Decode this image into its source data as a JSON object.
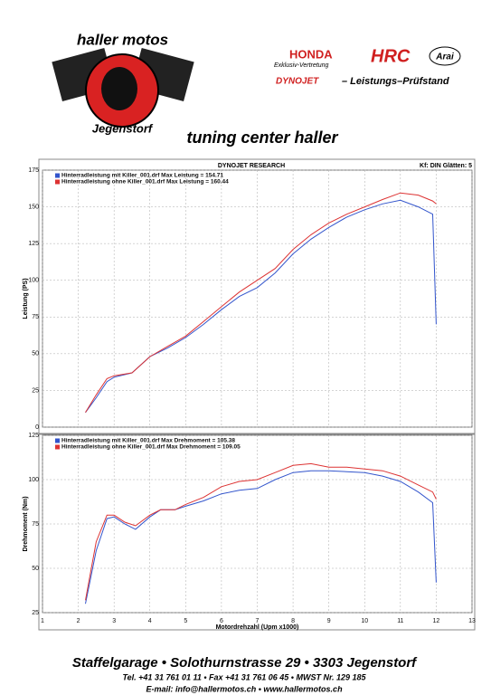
{
  "header": {
    "brand_line1": "haller motos",
    "brand_line2": "Jegenstorf",
    "honda": "HONDA",
    "honda_sub": "Exklusiv-Vertretung",
    "hrc": "HRC",
    "arai": "Arai",
    "dynojet": "DYNOJET",
    "dyno_text": "– Leistungs–Prüfstand",
    "tagline": "tuning center haller"
  },
  "dyno": {
    "title": "DYNOJET RESEARCH",
    "settings": "Kf: DIN  Glätten: 5"
  },
  "chart_data": [
    {
      "type": "line",
      "ylabel": "Leistung (PS)",
      "ylim": [
        0,
        175
      ],
      "yticks": [
        0,
        25,
        50,
        75,
        100,
        125,
        150,
        175
      ],
      "xlim": [
        1,
        13
      ],
      "xticks": [
        1,
        2,
        3,
        4,
        5,
        6,
        7,
        8,
        9,
        10,
        11,
        12,
        13
      ],
      "show_xtick_labels": false,
      "grid": true,
      "x": [
        2.2,
        2.5,
        2.8,
        3,
        3.5,
        4,
        4.5,
        5,
        5.5,
        6,
        6.5,
        7,
        7.5,
        8,
        8.5,
        9,
        9.5,
        10,
        10.5,
        11,
        11.5,
        11.9,
        12
      ],
      "series": [
        {
          "name": "Hinterradleistung mit Killer_001.drf Max Leistung = 154.71",
          "color": "#3355cc",
          "values": [
            10,
            20,
            31,
            34,
            37,
            48,
            54,
            61,
            70,
            80,
            89,
            95,
            105,
            118,
            128,
            136,
            143,
            148,
            152,
            154.5,
            150,
            145,
            70
          ]
        },
        {
          "name": "Hinterradleistung ohne Killer_001.drf Max Leistung = 160.44",
          "color": "#dd3333",
          "values": [
            10,
            22,
            33,
            35,
            37,
            48,
            55,
            62,
            72,
            82,
            92,
            100,
            108,
            121,
            131,
            139,
            145,
            150,
            155,
            159.5,
            158,
            154,
            152
          ]
        }
      ]
    },
    {
      "type": "line",
      "ylabel": "Drehmoment (Nm)",
      "xlabel": "Motordrehzahl (Upm x1000)",
      "ylim": [
        25,
        125
      ],
      "yticks": [
        25,
        50,
        75,
        100,
        125
      ],
      "xlim": [
        1,
        13
      ],
      "xticks": [
        1,
        2,
        3,
        4,
        5,
        6,
        7,
        8,
        9,
        10,
        11,
        12,
        13
      ],
      "show_xtick_labels": true,
      "grid": true,
      "x": [
        2.2,
        2.5,
        2.8,
        3,
        3.3,
        3.6,
        4,
        4.3,
        4.7,
        5,
        5.5,
        6,
        6.5,
        7,
        7.5,
        8,
        8.5,
        9,
        9.5,
        10,
        10.5,
        11,
        11.5,
        11.9,
        12
      ],
      "series": [
        {
          "name": "Hinterradleistung mit Killer_001.drf Max Drehmoment = 105.38",
          "color": "#3355cc",
          "values": [
            30,
            60,
            78,
            79,
            75,
            72,
            79,
            83,
            83,
            85,
            88,
            92,
            94,
            95,
            100,
            104,
            105,
            105,
            104.5,
            104,
            102,
            99,
            93,
            87,
            42
          ]
        },
        {
          "name": "Hinterradleistung ohne Killer_001.drf Max Drehmoment = 109.05",
          "color": "#dd3333",
          "values": [
            32,
            65,
            80,
            80,
            76,
            74,
            80,
            83,
            83,
            86,
            90,
            96,
            99,
            100,
            104,
            108,
            109,
            107,
            107,
            106,
            105,
            102,
            97,
            93,
            89
          ]
        }
      ]
    }
  ],
  "footer": {
    "address": "Staffelgarage • Solothurnstrasse 29 • 3303 Jegenstorf",
    "contact": "Tel. +41 31 761 01 11 • Fax +41 31 761 06 45 • MWST Nr. 129 185",
    "web": "E-mail: info@hallermotos.ch • www.hallermotos.ch"
  }
}
